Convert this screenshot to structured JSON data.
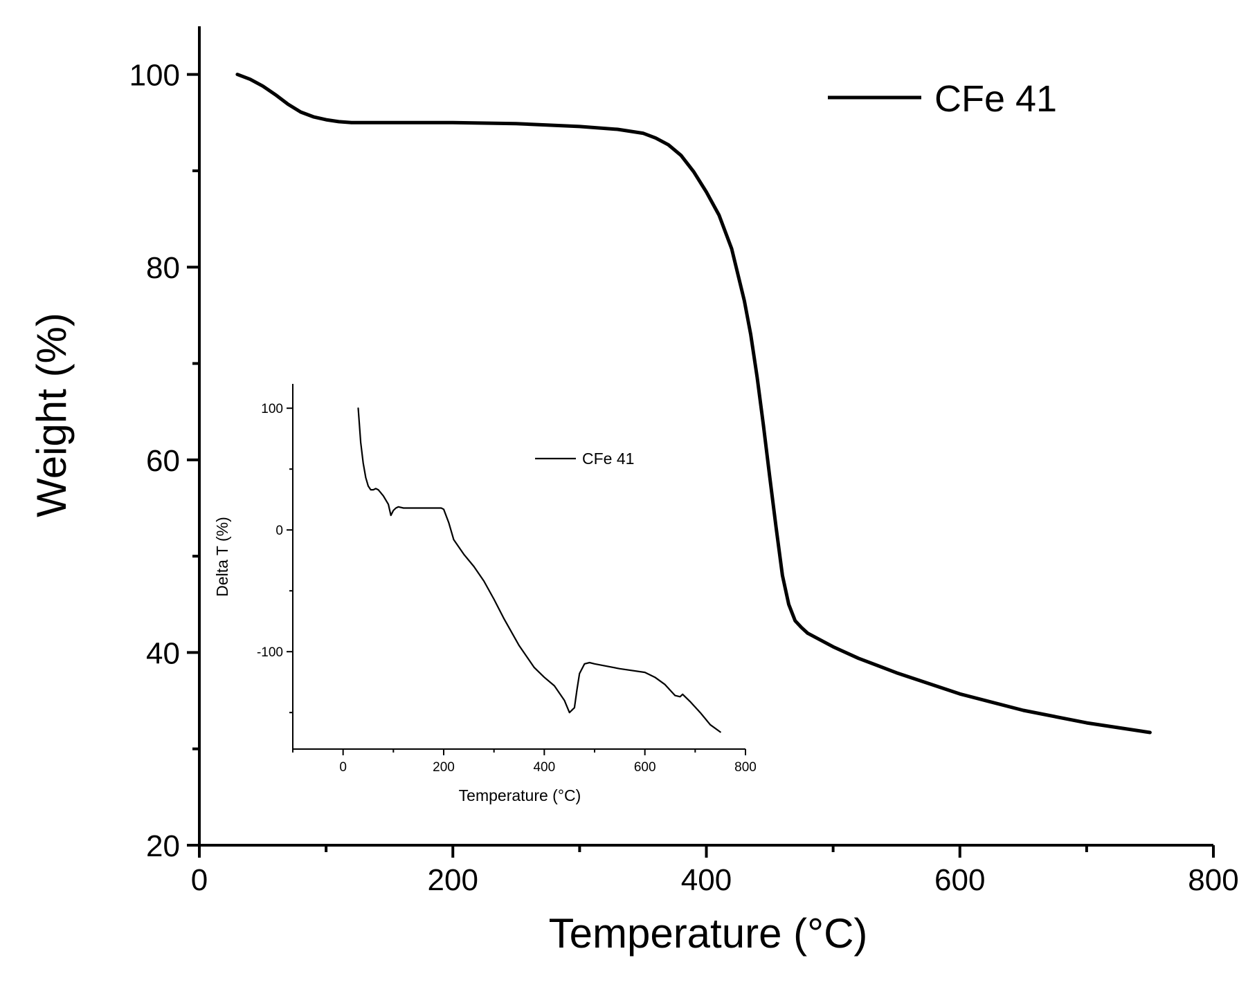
{
  "chart_data": [
    {
      "type": "line",
      "title": "",
      "xlabel": "Temperature (°C)",
      "ylabel": "Weight (%)",
      "xlim": [
        0,
        800
      ],
      "ylim": [
        20,
        105
      ],
      "x_ticks": [
        0,
        200,
        400,
        600,
        800
      ],
      "x_tick_labels": [
        "0",
        "200",
        "400",
        "600",
        "800"
      ],
      "x_minor_ticks": [
        100,
        300,
        500,
        700
      ],
      "y_ticks": [
        20,
        40,
        60,
        80,
        100
      ],
      "y_tick_labels": [
        "20",
        "40",
        "60",
        "80",
        "100"
      ],
      "y_minor_ticks": [
        30,
        50,
        70,
        90
      ],
      "grid": false,
      "legend": {
        "position": "top-right",
        "entries": [
          "CFe 41"
        ]
      },
      "series": [
        {
          "name": "CFe 41",
          "color": "#000000",
          "x": [
            30,
            40,
            50,
            60,
            70,
            80,
            90,
            100,
            110,
            120,
            150,
            200,
            250,
            300,
            330,
            350,
            360,
            370,
            380,
            390,
            400,
            410,
            420,
            430,
            435,
            440,
            445,
            450,
            455,
            460,
            465,
            470,
            475,
            480,
            490,
            500,
            520,
            550,
            600,
            650,
            700,
            750
          ],
          "y": [
            100,
            99.5,
            98.8,
            97.9,
            96.9,
            96.1,
            95.6,
            95.3,
            95.1,
            95.0,
            95.0,
            95.0,
            94.9,
            94.6,
            94.3,
            93.9,
            93.4,
            92.7,
            91.6,
            89.9,
            87.8,
            85.4,
            81.9,
            76.5,
            73.0,
            68.6,
            63.6,
            58.2,
            53.0,
            48.0,
            45.0,
            43.3,
            42.6,
            42.0,
            41.3,
            40.6,
            39.4,
            37.9,
            35.7,
            34.0,
            32.7,
            31.7
          ]
        }
      ]
    },
    {
      "type": "line",
      "title": "",
      "xlabel": "Temperature (°C)",
      "ylabel": "Delta T (%)",
      "xlim": [
        -100,
        800
      ],
      "ylim": [
        -180,
        120
      ],
      "x_ticks": [
        0,
        200,
        400,
        600,
        800
      ],
      "x_tick_labels": [
        "0",
        "200",
        "400",
        "600",
        "800"
      ],
      "x_minor_ticks": [
        -100,
        100,
        300,
        500,
        700
      ],
      "y_ticks": [
        -100,
        0,
        100
      ],
      "y_tick_labels": [
        "-100",
        "0",
        "100"
      ],
      "y_minor_ticks": [
        -150,
        -50,
        50
      ],
      "grid": false,
      "legend": {
        "position": "top-center",
        "entries": [
          "CFe 41"
        ]
      },
      "series": [
        {
          "name": "CFe 41",
          "color": "#000000",
          "x": [
            30,
            35,
            40,
            45,
            50,
            55,
            60,
            65,
            70,
            80,
            90,
            95,
            100,
            105,
            110,
            120,
            150,
            195,
            200,
            210,
            220,
            240,
            260,
            280,
            300,
            320,
            350,
            380,
            400,
            420,
            440,
            450,
            460,
            465,
            470,
            480,
            490,
            500,
            550,
            600,
            620,
            640,
            660,
            670,
            675,
            690,
            710,
            730,
            750
          ],
          "y": [
            100,
            72,
            55,
            43,
            36,
            33,
            33,
            34,
            33,
            28,
            21,
            12,
            16,
            18,
            19,
            18,
            18,
            18,
            17,
            6,
            -8,
            -20,
            -30,
            -42,
            -57,
            -73,
            -95,
            -113,
            -121,
            -128,
            -140,
            -150,
            -146,
            -131,
            -118,
            -110,
            -109,
            -110,
            -114,
            -117,
            -121,
            -127,
            -136,
            -137,
            -135,
            -141,
            -150,
            -160,
            -166
          ]
        }
      ]
    }
  ]
}
